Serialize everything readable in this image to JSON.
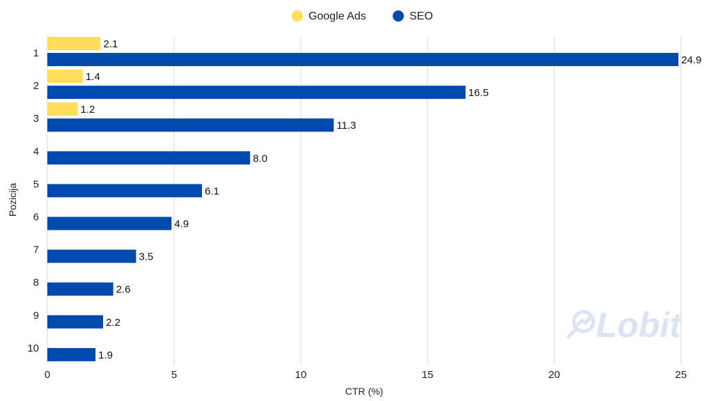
{
  "chart_data": {
    "type": "bar",
    "orientation": "horizontal",
    "categories": [
      "1",
      "2",
      "3",
      "4",
      "5",
      "6",
      "7",
      "8",
      "9",
      "10"
    ],
    "series": [
      {
        "name": "Google Ads",
        "color": "#FFDE59",
        "values": [
          2.1,
          1.4,
          1.2,
          null,
          null,
          null,
          null,
          null,
          null,
          null
        ],
        "labels": [
          "2.1",
          "1.4",
          "1.2",
          "",
          "",
          "",
          "",
          "",
          "",
          ""
        ]
      },
      {
        "name": "SEO",
        "color": "#004AAD",
        "values": [
          24.9,
          16.5,
          11.3,
          8.0,
          6.1,
          4.9,
          3.5,
          2.6,
          2.2,
          1.9
        ],
        "labels": [
          "24.9",
          "16.5",
          "11.3",
          "8.0",
          "6.1",
          "4.9",
          "3.5",
          "2.6",
          "2.2",
          "1.9"
        ]
      }
    ],
    "xlabel": "CTR (%)",
    "ylabel": "Pozicija",
    "xlim": [
      0,
      25
    ],
    "xticks": [
      "0",
      "5",
      "10",
      "15",
      "20",
      "25"
    ],
    "grid": "vertical",
    "legend_position": "top-center"
  },
  "watermark": {
    "text": "Lobit",
    "icon": "magnifier-chart-icon"
  },
  "colors": {
    "grid": "#d9d9d9"
  }
}
